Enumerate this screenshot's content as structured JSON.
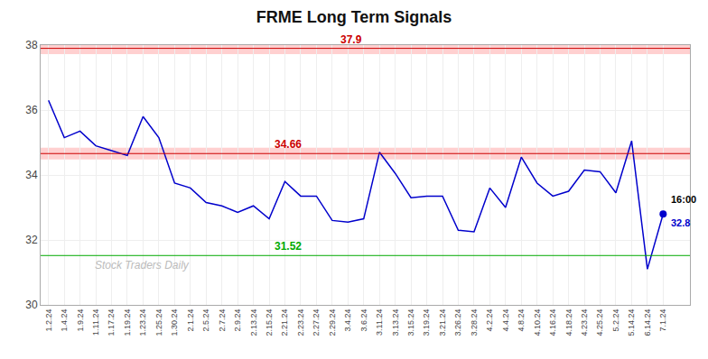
{
  "chart_data": {
    "type": "line",
    "title": "FRME Long Term Signals",
    "categories": [
      "1.2.24",
      "1.4.24",
      "1.9.24",
      "1.11.24",
      "1.17.24",
      "1.19.24",
      "1.23.24",
      "1.25.24",
      "1.30.24",
      "2.1.24",
      "2.5.24",
      "2.7.24",
      "2.9.24",
      "2.13.24",
      "2.15.24",
      "2.21.24",
      "2.23.24",
      "2.27.24",
      "2.29.24",
      "3.4.24",
      "3.6.24",
      "3.11.24",
      "3.13.24",
      "3.15.24",
      "3.19.24",
      "3.21.24",
      "3.26.24",
      "3.28.24",
      "4.2.24",
      "4.4.24",
      "4.8.24",
      "4.10.24",
      "4.16.24",
      "4.18.24",
      "4.23.24",
      "4.25.24",
      "5.2.24",
      "5.14.24",
      "6.14.24",
      "7.1.24"
    ],
    "values": [
      36.3,
      35.15,
      35.35,
      34.9,
      34.75,
      34.6,
      35.8,
      35.15,
      33.75,
      33.6,
      33.15,
      33.05,
      32.85,
      33.05,
      32.65,
      33.8,
      33.35,
      33.35,
      32.6,
      32.55,
      32.65,
      34.7,
      34.05,
      33.3,
      33.35,
      33.35,
      32.3,
      32.25,
      33.6,
      33.0,
      34.55,
      33.75,
      33.35,
      33.5,
      34.15,
      34.1,
      33.45,
      35.05,
      31.1,
      32.8
    ],
    "color": "#0000cc",
    "marker": "last",
    "ylim": [
      30,
      38
    ],
    "yticks": [
      30,
      32,
      34,
      36,
      38
    ],
    "grid": true,
    "reference_lines": [
      {
        "value": 37.9,
        "label": "37.9",
        "color": "#cc0000",
        "band_color": "#ffaaaa",
        "band_half_width": 0.18
      },
      {
        "value": 34.66,
        "label": "34.66",
        "color": "#cc0000",
        "band_color": "#ffaaaa",
        "band_half_width": 0.18
      },
      {
        "value": 31.52,
        "label": "31.52",
        "color": "#00aa00"
      }
    ],
    "annotations": [
      {
        "text": "16:00",
        "color": "#000000"
      },
      {
        "text": "32.8",
        "color": "#0000cc"
      }
    ],
    "watermark": "Stock Traders Daily"
  }
}
